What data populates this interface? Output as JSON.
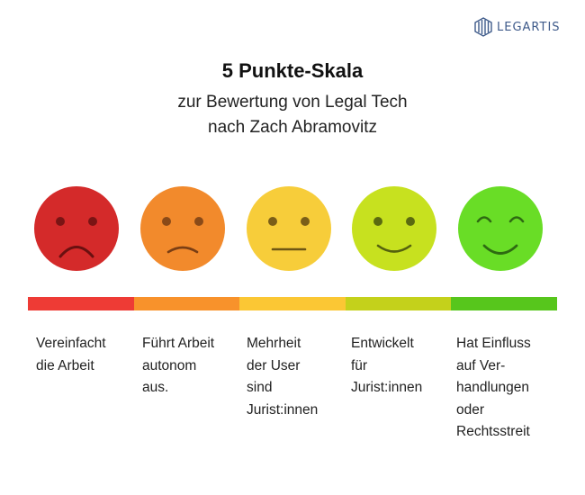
{
  "brand": {
    "name": "LEGARTIS"
  },
  "title": "5 Punkte-Skala",
  "subtitle_line1": "zur Bewertung von Legal Tech",
  "subtitle_line2": "nach Zach Abramovitz",
  "levels": [
    {
      "mood": "very-sad",
      "color": "#d42a2a",
      "bar_color": "#ee3b35",
      "label": "Vereinfacht\ndie Arbeit"
    },
    {
      "mood": "sad",
      "color": "#f28a2c",
      "bar_color": "#f8922b",
      "label": "Führt Arbeit\nautonom\naus."
    },
    {
      "mood": "neutral",
      "color": "#f7cd3a",
      "bar_color": "#fbc734",
      "label": "Mehrheit\nder User\nsind\nJurist:innen"
    },
    {
      "mood": "happy",
      "color": "#c7e11f",
      "bar_color": "#c4d11b",
      "label": "Entwickelt\nfür\nJurist:innen"
    },
    {
      "mood": "very-happy",
      "color": "#69dd26",
      "bar_color": "#57c61c",
      "label": "Hat Einfluss\nauf Ver-\nhandlungen\noder\nRechtsstreit"
    }
  ]
}
